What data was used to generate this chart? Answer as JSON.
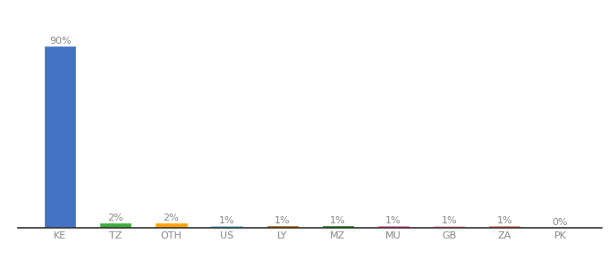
{
  "categories": [
    "KE",
    "TZ",
    "OTH",
    "US",
    "LY",
    "MZ",
    "MU",
    "GB",
    "ZA",
    "PK"
  ],
  "values": [
    90,
    2,
    2,
    1,
    1,
    1,
    1,
    1,
    1,
    0
  ],
  "labels": [
    "90%",
    "2%",
    "2%",
    "1%",
    "1%",
    "1%",
    "1%",
    "1%",
    "1%",
    "0%"
  ],
  "bar_colors": [
    "#4472C4",
    "#3EAD3E",
    "#FFA500",
    "#87CEEB",
    "#C46A00",
    "#228B22",
    "#FF69B4",
    "#FFB6C1",
    "#FA8072",
    "#FFFFFF"
  ],
  "bar_edge_colors": [
    "#4472C4",
    "#3EAD3E",
    "#FFA500",
    "#87CEEB",
    "#C46A00",
    "#228B22",
    "#FF69B4",
    "#FFB6C1",
    "#FA8072",
    "#CCCCCC"
  ],
  "background_color": "#FFFFFF",
  "ylim": [
    0,
    97
  ],
  "label_fontsize": 8,
  "tick_fontsize": 8,
  "label_color": "#888888",
  "tick_color": "#888888",
  "spine_color": "#333333"
}
